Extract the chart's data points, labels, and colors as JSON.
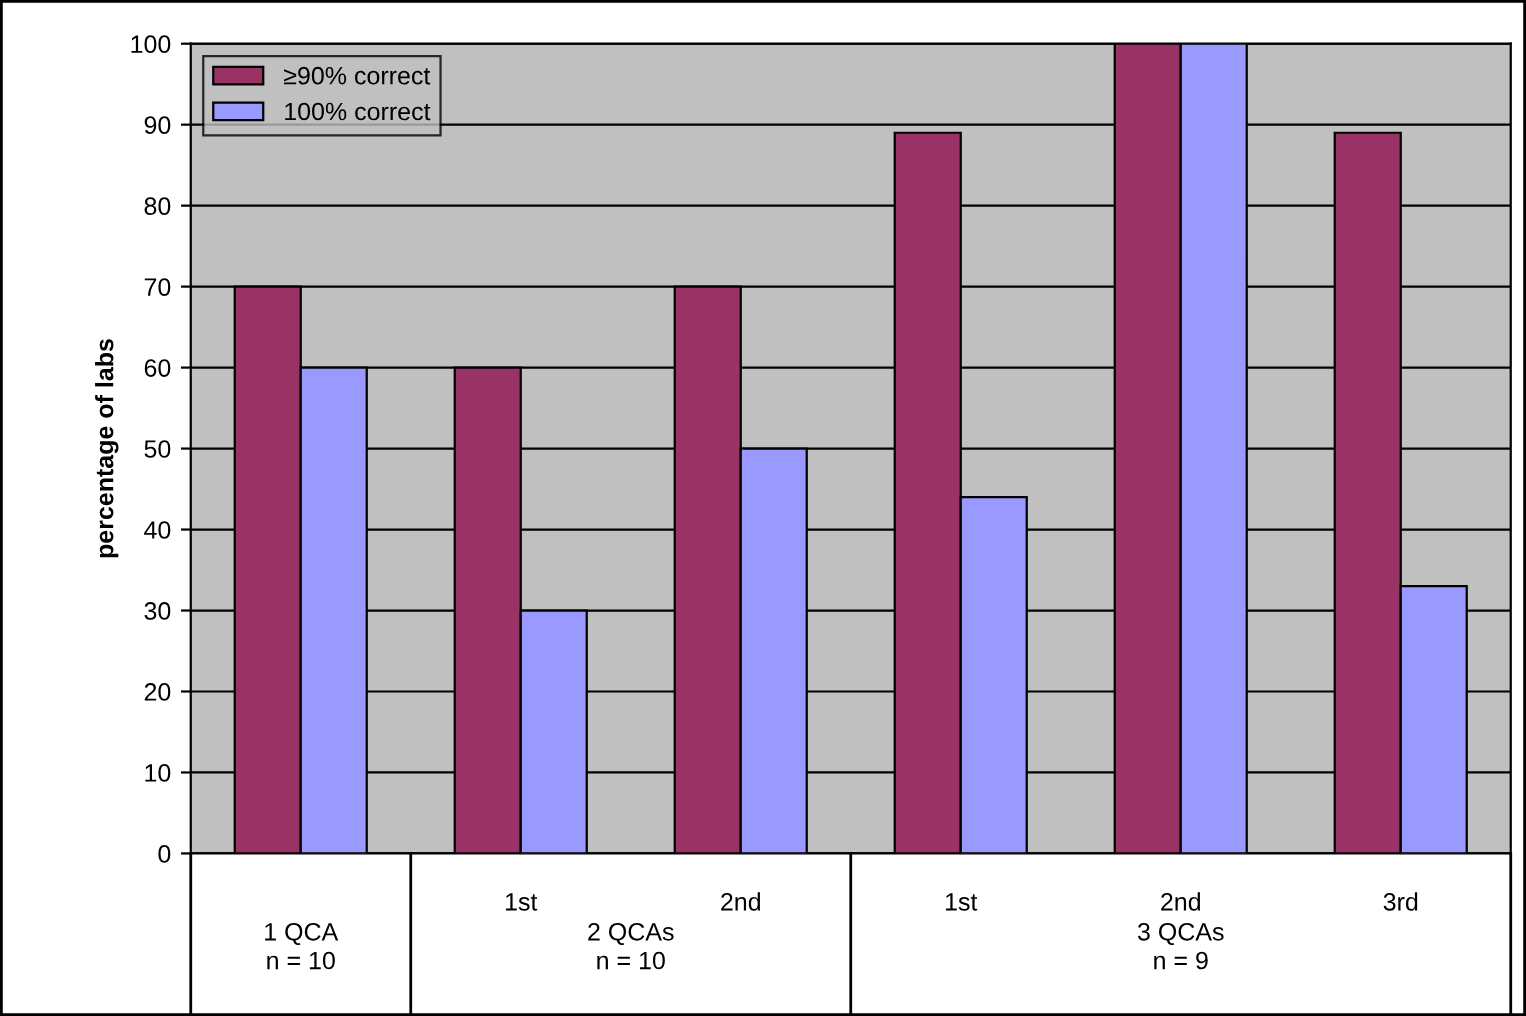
{
  "chart_data": {
    "type": "bar",
    "ylabel": "percentage of labs",
    "categories": [
      null,
      "1st",
      "2nd",
      "1st",
      "2nd",
      "3rd"
    ],
    "series": [
      {
        "name": "≥90% correct",
        "color": "#993366",
        "values": [
          70,
          60,
          70,
          89,
          100,
          89
        ]
      },
      {
        "name": "100% correct",
        "color": "#9999ff",
        "values": [
          60,
          30,
          50,
          44,
          100,
          33
        ]
      }
    ],
    "ylim": [
      0,
      100
    ],
    "yticks": [
      0,
      10,
      20,
      30,
      40,
      50,
      60,
      70,
      80,
      90,
      100
    ],
    "grid": "y",
    "legend": "top left",
    "annotations": [
      "1 QCA\nn = 10",
      "2 QCAs\nn = 10",
      "3 QCAs\nn = 9"
    ]
  }
}
